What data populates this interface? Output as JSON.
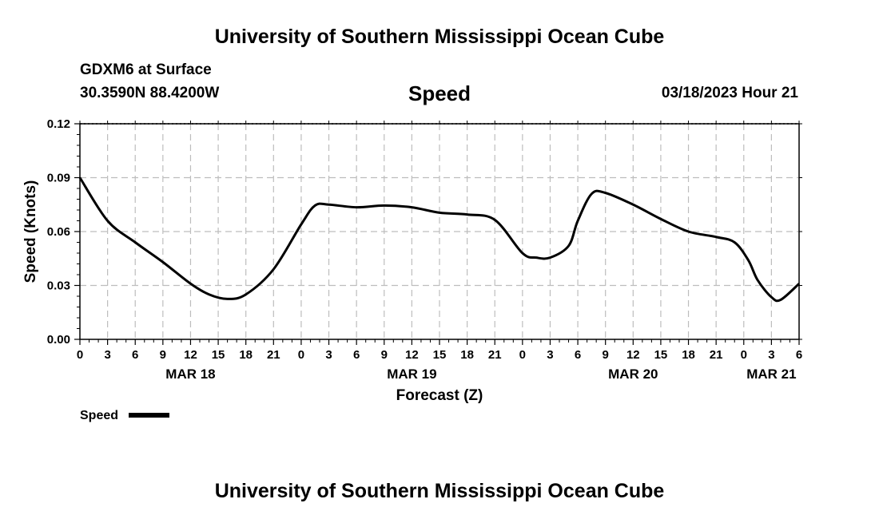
{
  "header": {
    "title": "University of Southern Mississippi Ocean Cube",
    "station": "GDXM6 at Surface",
    "coords": "30.3590N  88.4200W",
    "datetime": "03/18/2023 Hour 21"
  },
  "footer": {
    "title": "University of Southern Mississippi Ocean Cube"
  },
  "chart_data": {
    "type": "line",
    "title": "Speed",
    "xlabel": "Forecast (Z)",
    "ylabel": "Speed (Knots)",
    "x_unit": "hours from MAR 18 00Z",
    "xlim": [
      0,
      78
    ],
    "ylim": [
      0,
      0.12
    ],
    "grid": true,
    "y_ticks": [
      "0.00",
      "0.03",
      "0.06",
      "0.09",
      "0.12"
    ],
    "x_tick_labels": [
      "0",
      "3",
      "6",
      "9",
      "12",
      "15",
      "18",
      "21",
      "0",
      "3",
      "6",
      "9",
      "12",
      "15",
      "18",
      "21",
      "0",
      "3",
      "6",
      "9",
      "12",
      "15",
      "18",
      "21",
      "0",
      "3",
      "6"
    ],
    "day_labels": [
      {
        "label": "MAR 18",
        "hour": 12
      },
      {
        "label": "MAR 19",
        "hour": 36
      },
      {
        "label": "MAR 20",
        "hour": 60
      },
      {
        "label": "MAR 21",
        "hour": 75
      }
    ],
    "legend": {
      "label": "Speed",
      "position": "bottom-left"
    },
    "series": [
      {
        "name": "Speed",
        "color": "#000000",
        "x": [
          0,
          3,
          6,
          9,
          12,
          14,
          16,
          18,
          21,
          24,
          25.5,
          27,
          30,
          33,
          36,
          39,
          42,
          45,
          48,
          49.5,
          51,
          53,
          54,
          55.5,
          57,
          60,
          63,
          66,
          69,
          71,
          72.5,
          73.5,
          75,
          76,
          78
        ],
        "values": [
          0.09,
          0.066,
          0.054,
          0.043,
          0.031,
          0.025,
          0.0225,
          0.025,
          0.039,
          0.064,
          0.0745,
          0.075,
          0.0735,
          0.0745,
          0.0735,
          0.0705,
          0.0695,
          0.0665,
          0.048,
          0.0455,
          0.0455,
          0.052,
          0.066,
          0.081,
          0.0815,
          0.075,
          0.067,
          0.06,
          0.057,
          0.054,
          0.044,
          0.033,
          0.0235,
          0.022,
          0.031
        ]
      }
    ]
  }
}
